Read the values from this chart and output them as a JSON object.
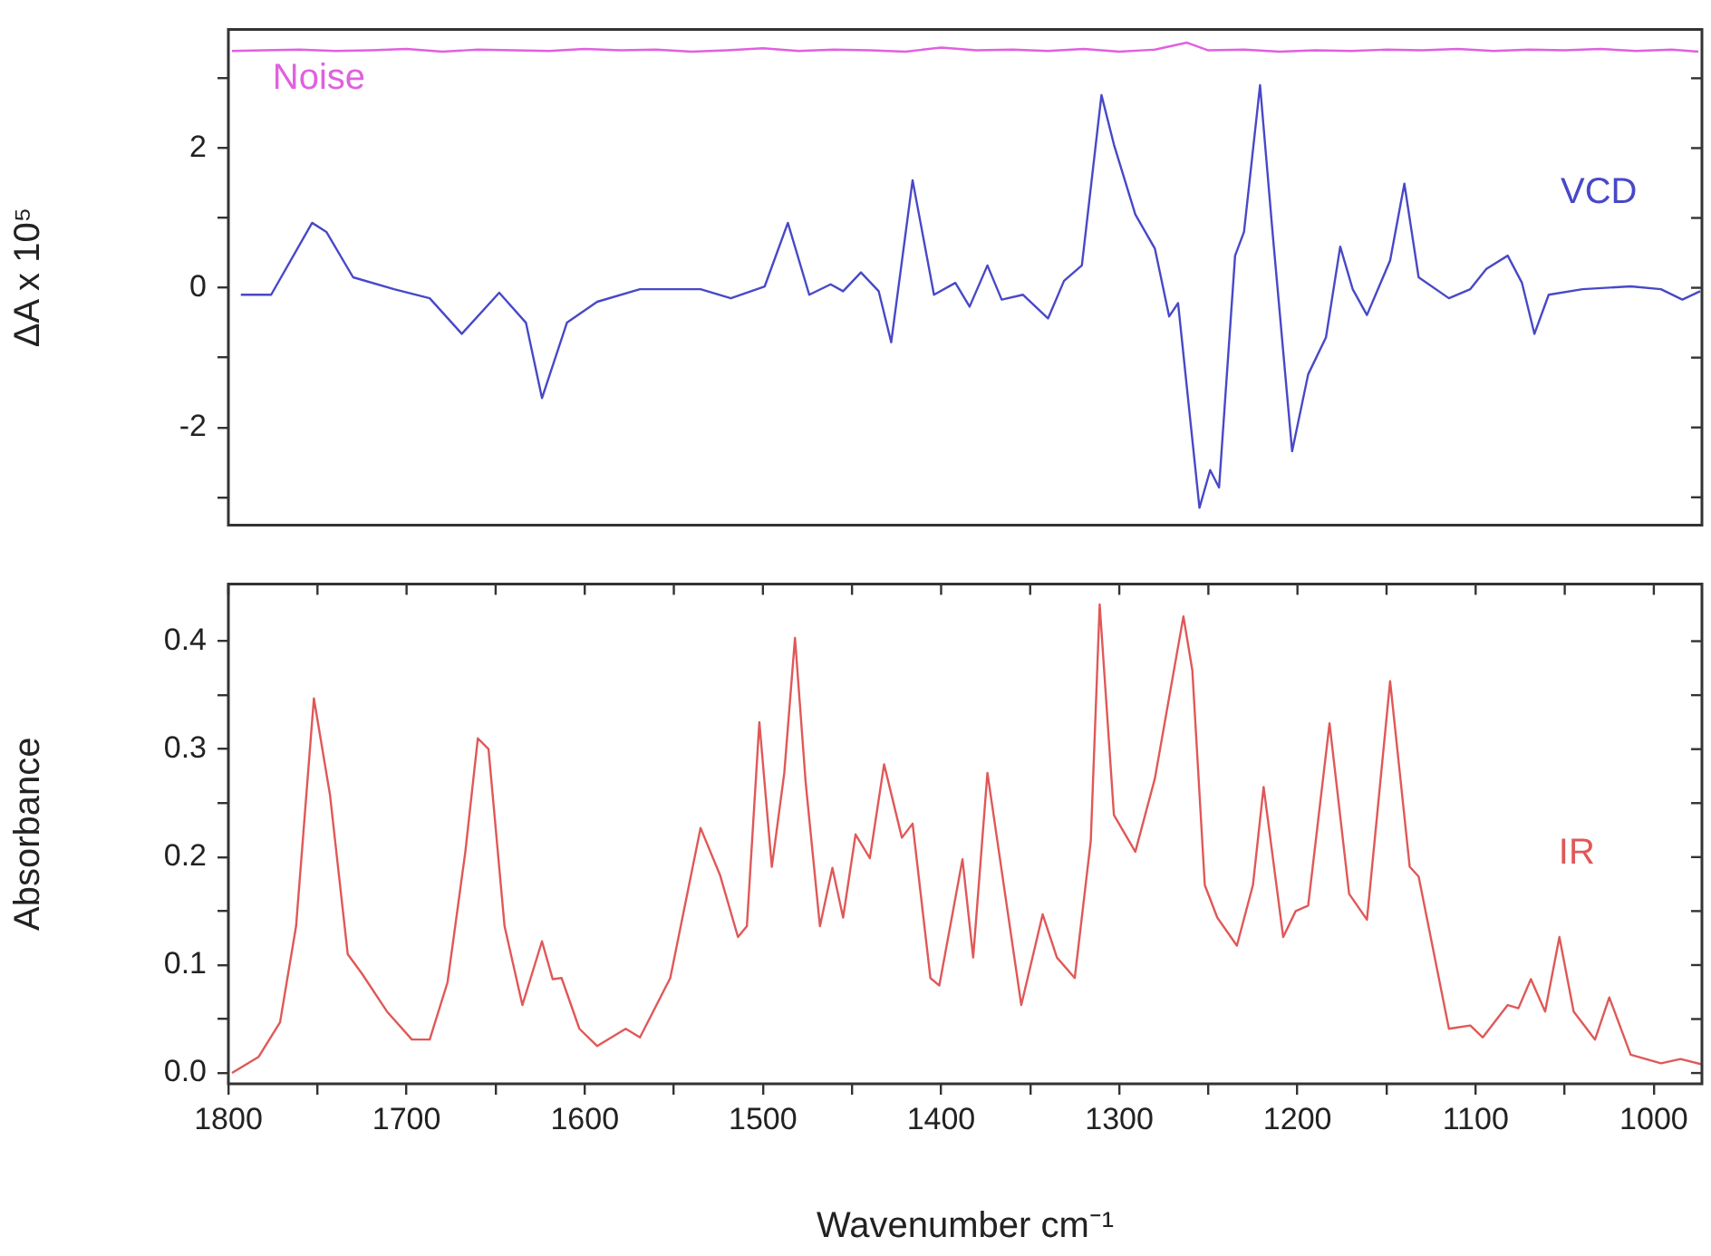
{
  "chart_data": [
    {
      "type": "line",
      "ylabel": "ΔA x 10⁵",
      "xlim": [
        1800,
        973
      ],
      "ylim": [
        -3.4,
        3.7
      ],
      "yticks": [
        {
          "value": -3,
          "label": null
        },
        -2,
        {
          "value": -1,
          "label": null
        },
        0,
        {
          "value": 1,
          "label": null
        },
        2,
        {
          "value": 3,
          "label": null
        }
      ],
      "tick_labels": "y",
      "legend": false,
      "grid": false,
      "marker": "none",
      "line_style": "solid",
      "series": [
        {
          "name": "Noise",
          "color": "#e060e0",
          "x": [
            1798,
            1780,
            1760,
            1740,
            1720,
            1700,
            1680,
            1660,
            1640,
            1620,
            1600,
            1580,
            1560,
            1540,
            1520,
            1500,
            1480,
            1460,
            1440,
            1420,
            1400,
            1380,
            1360,
            1340,
            1320,
            1300,
            1280,
            1262,
            1250,
            1230,
            1210,
            1190,
            1170,
            1150,
            1130,
            1110,
            1090,
            1070,
            1050,
            1030,
            1010,
            990,
            975
          ],
          "values": [
            3.39,
            3.4,
            3.41,
            3.39,
            3.4,
            3.42,
            3.38,
            3.41,
            3.4,
            3.39,
            3.42,
            3.4,
            3.41,
            3.38,
            3.4,
            3.43,
            3.39,
            3.41,
            3.4,
            3.38,
            3.44,
            3.4,
            3.41,
            3.39,
            3.42,
            3.38,
            3.41,
            3.51,
            3.4,
            3.41,
            3.38,
            3.4,
            3.39,
            3.41,
            3.4,
            3.42,
            3.39,
            3.41,
            3.4,
            3.42,
            3.39,
            3.41,
            3.38
          ]
        },
        {
          "name": "VCD",
          "color": "#4848c8",
          "x": [
            1793,
            1776,
            1753,
            1745,
            1730,
            1707,
            1687,
            1669,
            1648,
            1633,
            1624,
            1610,
            1593,
            1569,
            1535,
            1518,
            1499,
            1486,
            1474,
            1462,
            1455,
            1445,
            1435,
            1428,
            1416,
            1404,
            1392,
            1384,
            1374,
            1366,
            1354,
            1340,
            1331,
            1321,
            1310,
            1303,
            1291,
            1280,
            1272,
            1267,
            1255,
            1249,
            1244,
            1235,
            1230,
            1221,
            1214,
            1203,
            1194,
            1184,
            1176,
            1169,
            1161,
            1148,
            1140,
            1132,
            1115,
            1103,
            1094,
            1082,
            1074,
            1067,
            1059,
            1040,
            1013,
            996,
            984,
            974
          ],
          "values": [
            -0.1,
            -0.1,
            0.93,
            0.8,
            0.15,
            -0.02,
            -0.15,
            -0.66,
            -0.07,
            -0.5,
            -1.58,
            -0.5,
            -0.2,
            -0.02,
            -0.02,
            -0.15,
            0.02,
            0.93,
            -0.1,
            0.05,
            -0.05,
            0.22,
            -0.05,
            -0.78,
            1.54,
            -0.1,
            0.07,
            -0.27,
            0.32,
            -0.17,
            -0.1,
            -0.44,
            0.1,
            0.32,
            2.76,
            2.05,
            1.05,
            0.56,
            -0.41,
            -0.22,
            -3.15,
            -2.61,
            -2.86,
            0.46,
            0.8,
            2.9,
            0.8,
            -2.34,
            -1.24,
            -0.71,
            0.59,
            -0.02,
            -0.39,
            0.39,
            1.49,
            0.15,
            -0.15,
            -0.02,
            0.27,
            0.46,
            0.07,
            -0.66,
            -0.1,
            -0.02,
            0.02,
            -0.02,
            -0.17,
            -0.05
          ]
        }
      ]
    },
    {
      "type": "line",
      "xlabel": "Wavenumber cm⁻¹",
      "ylabel": "Absorbance",
      "xlim": [
        1800,
        973
      ],
      "xticks": [
        1800,
        {
          "value": 1750,
          "label": null
        },
        1700,
        {
          "value": 1650,
          "label": null
        },
        1600,
        {
          "value": 1550,
          "label": null
        },
        1500,
        {
          "value": 1450,
          "label": null
        },
        1400,
        {
          "value": 1350,
          "label": null
        },
        1300,
        {
          "value": 1250,
          "label": null
        },
        1200,
        {
          "value": 1150,
          "label": null
        },
        1100,
        {
          "value": 1050,
          "label": null
        },
        1000
      ],
      "ylim": [
        -0.01,
        0.453
      ],
      "yticks": [
        {
          "value": 0,
          "label": "0.0"
        },
        {
          "value": 0.05,
          "label": null
        },
        0.1,
        {
          "value": 0.15,
          "label": null
        },
        0.2,
        {
          "value": 0.25,
          "label": null
        },
        0.3,
        {
          "value": 0.35,
          "label": null
        },
        0.4
      ],
      "legend": false,
      "grid": false,
      "marker": "none",
      "line_style": "solid",
      "series": [
        {
          "name": "IR",
          "color": "#e05858",
          "x": [
            1798,
            1783,
            1771,
            1762,
            1752,
            1743,
            1733,
            1725,
            1711,
            1697,
            1687,
            1677,
            1667,
            1660,
            1654,
            1645,
            1635,
            1624,
            1618,
            1613,
            1603,
            1593,
            1577,
            1569,
            1552,
            1535,
            1524,
            1514,
            1509,
            1502,
            1495,
            1488,
            1482,
            1476,
            1468,
            1461,
            1455,
            1448,
            1440,
            1432,
            1422,
            1416,
            1406,
            1401,
            1388,
            1382,
            1374,
            1355,
            1343,
            1335,
            1325,
            1316,
            1311,
            1303,
            1291,
            1280,
            1264,
            1259,
            1252,
            1245,
            1234,
            1225,
            1219,
            1208,
            1201,
            1194,
            1182,
            1171,
            1161,
            1148,
            1137,
            1132,
            1115,
            1103,
            1096,
            1082,
            1076,
            1069,
            1061,
            1053,
            1045,
            1033,
            1025,
            1013,
            996,
            985,
            973
          ],
          "values": [
            0.0,
            0.015,
            0.047,
            0.136,
            0.347,
            0.258,
            0.11,
            0.092,
            0.057,
            0.031,
            0.031,
            0.084,
            0.205,
            0.31,
            0.3,
            0.136,
            0.063,
            0.122,
            0.087,
            0.088,
            0.041,
            0.025,
            0.041,
            0.033,
            0.088,
            0.227,
            0.183,
            0.126,
            0.136,
            0.325,
            0.191,
            0.278,
            0.403,
            0.269,
            0.136,
            0.19,
            0.144,
            0.221,
            0.199,
            0.286,
            0.218,
            0.231,
            0.088,
            0.081,
            0.198,
            0.107,
            0.278,
            0.063,
            0.147,
            0.107,
            0.088,
            0.215,
            0.434,
            0.239,
            0.205,
            0.273,
            0.423,
            0.373,
            0.174,
            0.144,
            0.118,
            0.174,
            0.265,
            0.126,
            0.15,
            0.155,
            0.324,
            0.166,
            0.142,
            0.363,
            0.191,
            0.182,
            0.041,
            0.044,
            0.033,
            0.063,
            0.06,
            0.087,
            0.057,
            0.126,
            0.057,
            0.031,
            0.07,
            0.017,
            0.009,
            0.013,
            0.008
          ]
        }
      ]
    }
  ]
}
